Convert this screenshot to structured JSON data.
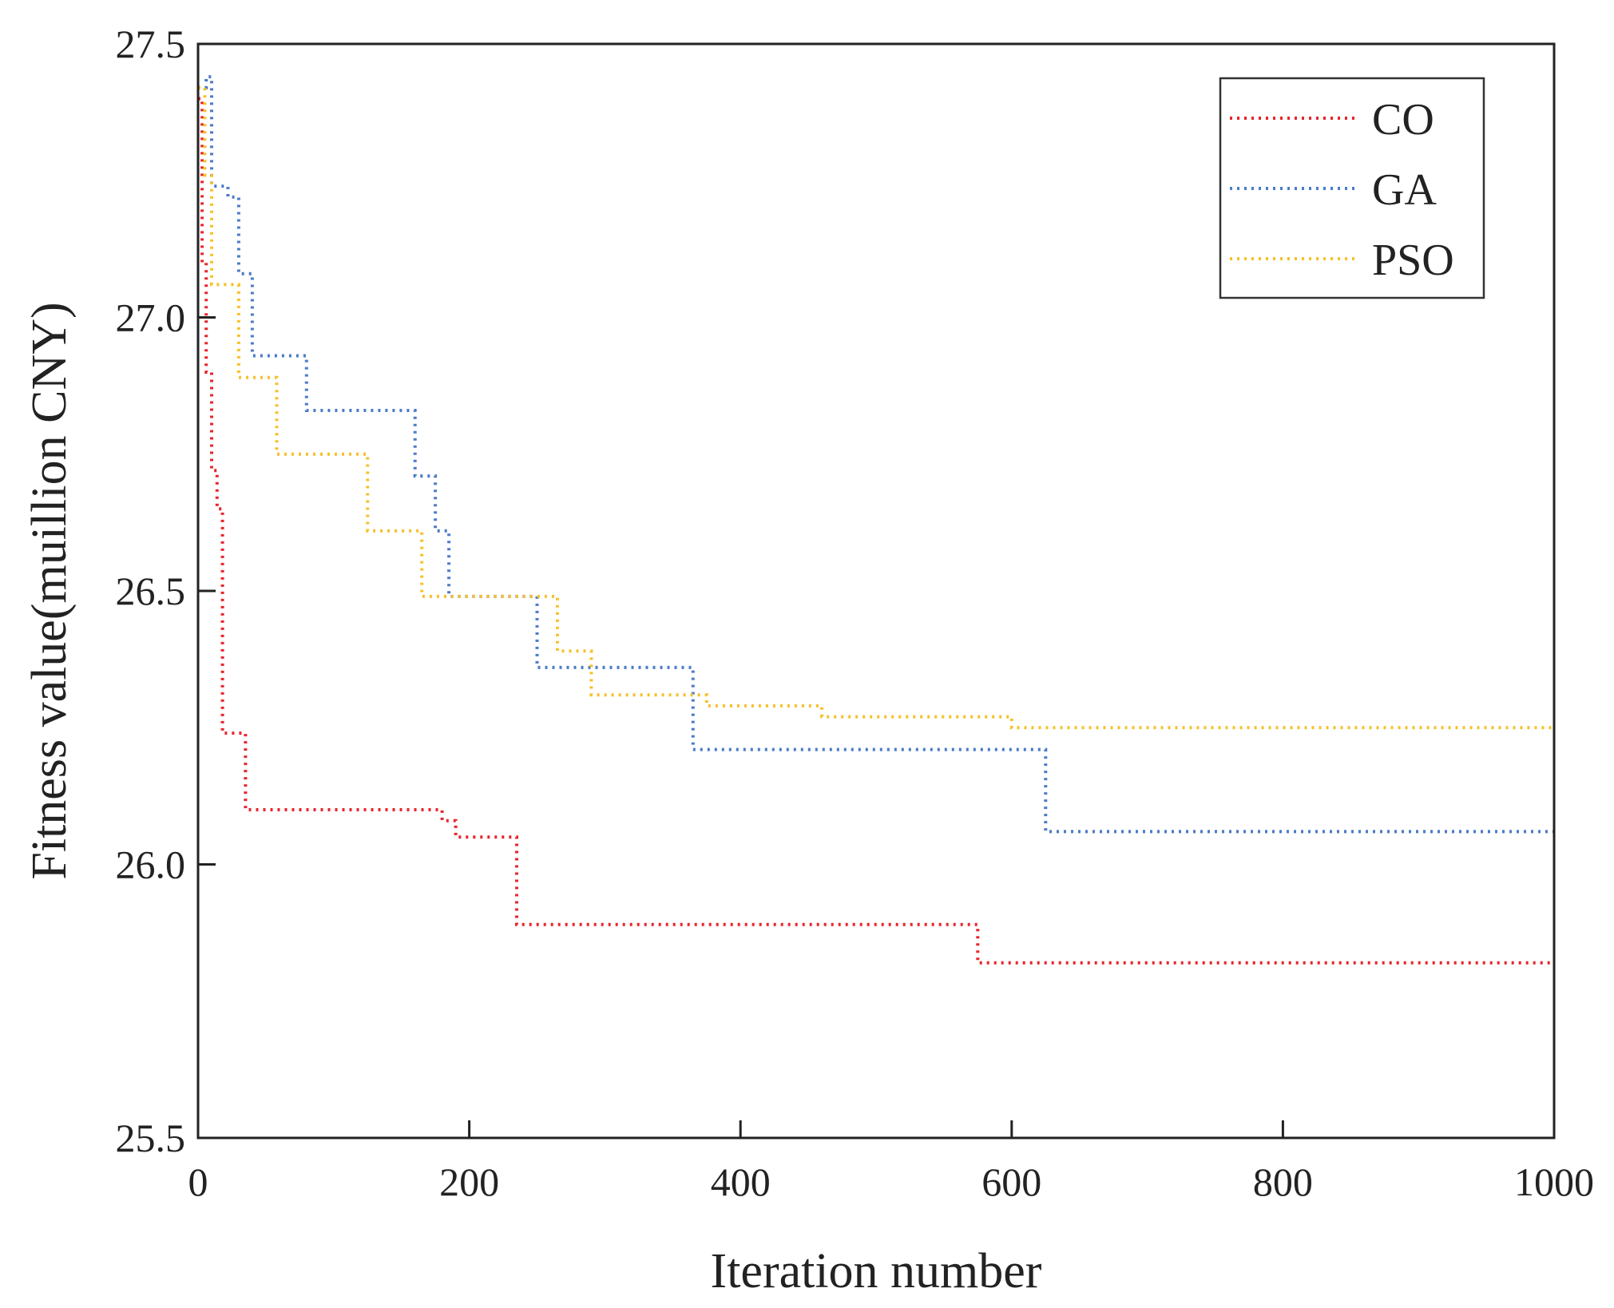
{
  "chart_data": {
    "type": "line",
    "title": "",
    "xlabel": "Iteration number",
    "ylabel": "Fitness value(muillion CNY)",
    "xlim": [
      0,
      1000
    ],
    "ylim": [
      25.5,
      27.5
    ],
    "xticks": [
      0,
      200,
      400,
      600,
      800,
      1000
    ],
    "xtick_labels": [
      "0",
      "200",
      "400",
      "600",
      "800",
      "1000"
    ],
    "yticks": [
      25.5,
      26.0,
      26.5,
      27.0,
      27.5
    ],
    "ytick_labels": [
      "25.5",
      "26.0",
      "26.5",
      "27.0",
      "27.5"
    ],
    "grid": false,
    "legend_position": "top-right",
    "line_style": "dotted",
    "series": [
      {
        "name": "CO",
        "color": "#e8242c",
        "step": true,
        "x": [
          0,
          3,
          6,
          10,
          14,
          18,
          24,
          35,
          170,
          180,
          190,
          230,
          235,
          400,
          570,
          575,
          1000
        ],
        "y": [
          27.4,
          27.1,
          26.9,
          26.72,
          26.65,
          26.24,
          26.24,
          26.1,
          26.1,
          26.08,
          26.05,
          26.05,
          25.89,
          25.89,
          25.89,
          25.82,
          25.82
        ]
      },
      {
        "name": "GA",
        "color": "#4a7bc6",
        "step": true,
        "x": [
          0,
          6,
          10,
          22,
          30,
          40,
          80,
          160,
          170,
          175,
          185,
          240,
          250,
          360,
          365,
          620,
          625,
          1000
        ],
        "y": [
          27.42,
          27.44,
          27.24,
          27.22,
          27.08,
          26.93,
          26.83,
          26.71,
          26.71,
          26.61,
          26.49,
          26.49,
          26.36,
          26.36,
          26.21,
          26.21,
          26.06,
          26.06
        ]
      },
      {
        "name": "PSO",
        "color": "#f5c12a",
        "step": true,
        "x": [
          0,
          5,
          10,
          25,
          30,
          52,
          58,
          120,
          125,
          160,
          165,
          255,
          265,
          285,
          290,
          370,
          375,
          450,
          460,
          590,
          600,
          1000
        ],
        "y": [
          27.42,
          27.26,
          27.06,
          27.06,
          26.89,
          26.89,
          26.75,
          26.75,
          26.61,
          26.61,
          26.49,
          26.49,
          26.39,
          26.39,
          26.31,
          26.31,
          26.29,
          26.29,
          26.27,
          26.27,
          26.25,
          26.25
        ]
      }
    ]
  }
}
